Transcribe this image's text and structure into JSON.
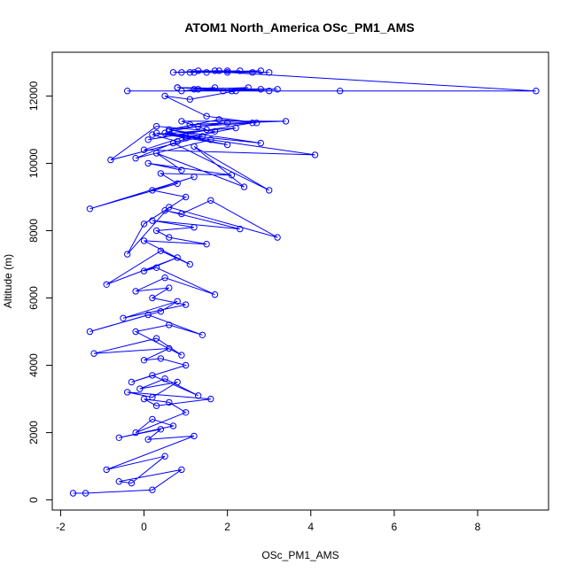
{
  "chart_data": {
    "type": "line",
    "title": "ATOM1 North_America OSc_PM1_AMS",
    "xlabel": "OSc_PM1_AMS",
    "ylabel": "Altitude (m)",
    "xlim": [
      -2.2,
      9.7
    ],
    "ylim": [
      -300,
      13300
    ],
    "x_ticks": [
      -2,
      0,
      2,
      4,
      6,
      8
    ],
    "y_ticks": [
      0,
      2000,
      4000,
      6000,
      8000,
      10000,
      12000
    ],
    "grid": false,
    "legend": "none",
    "line_color": "#0000ff",
    "marker": "open-circle",
    "series": [
      {
        "x": [
          -1.7,
          -1.4,
          0.2,
          0.9,
          -0.6,
          -0.3,
          0.5,
          -0.9,
          1.2,
          0.1,
          0.4,
          -0.6,
          0.7,
          0.2,
          -0.2,
          1.0,
          0.6,
          0.0,
          0.3,
          1.6,
          -0.4,
          0.2,
          0.8,
          -0.1,
          0.5,
          1.3,
          0.2,
          -0.3,
          1.0,
          0.4,
          0.0,
          0.6,
          -1.2,
          0.3,
          0.9,
          -0.2,
          0.6,
          1.4,
          0.1,
          -1.3,
          0.4,
          0.8,
          -0.5,
          1.0,
          0.2,
          0.6,
          -0.2,
          0.5,
          1.7,
          0.3,
          0.0,
          0.8,
          -0.9,
          0.4,
          1.1,
          0.0,
          1.5,
          0.6,
          0.3,
          1.2,
          0.2,
          2.3,
          0.5,
          0.9,
          1.6,
          3.2,
          0.6,
          -0.4,
          0.0,
          1.0,
          0.2,
          1.2,
          -1.3,
          0.8,
          0.4,
          2.1,
          0.1,
          0.9,
          0.3,
          2.4,
          1.2,
          3.0,
          0.7,
          -0.2,
          1.6,
          0.3,
          2.0,
          1.0,
          0.0,
          4.1,
          0.5,
          2.8,
          0.6,
          1.4,
          -0.8,
          0.3,
          1.7,
          0.8,
          0.2,
          2.2,
          1.0,
          0.6,
          1.3,
          2.6,
          0.1,
          1.5,
          0.9,
          3.4,
          1.1,
          2.0,
          0.6,
          1.8,
          2.7,
          1.5,
          0.5,
          1.1,
          2.2,
          0.8,
          3.2,
          0.9,
          1.7,
          1.2,
          2.1,
          0.8,
          2.8,
          1.9,
          2.5,
          1.3,
          3.0,
          -0.4,
          4.7,
          9.4,
          2.0,
          2.8,
          1.1,
          3.0,
          1.8,
          0.7,
          2.3,
          1.5,
          2.0,
          0.9,
          1.3,
          2.6,
          1.7,
          1.2
        ],
        "y": [
          200,
          200,
          300,
          900,
          550,
          500,
          1300,
          900,
          1900,
          1800,
          2100,
          1850,
          2200,
          2400,
          2000,
          2600,
          2900,
          3000,
          2800,
          3000,
          3200,
          3050,
          3500,
          3300,
          3600,
          3100,
          3700,
          3500,
          4000,
          4200,
          4150,
          4500,
          4350,
          4800,
          4300,
          5000,
          5200,
          4900,
          5500,
          5000,
          5600,
          5900,
          5400,
          5800,
          6000,
          6300,
          6200,
          6600,
          6100,
          6900,
          6800,
          7200,
          6400,
          7400,
          7000,
          7700,
          7600,
          7800,
          8000,
          8100,
          8300,
          8050,
          8600,
          8500,
          8900,
          7800,
          8700,
          7300,
          8200,
          9000,
          9200,
          9600,
          8650,
          9400,
          9700,
          9650,
          10000,
          9800,
          10300,
          9300,
          10500,
          9200,
          10600,
          10150,
          10700,
          10900,
          10550,
          10800,
          10400,
          10250,
          10900,
          10600,
          11000,
          10800,
          10100,
          11100,
          10950,
          10650,
          10850,
          11050,
          10750,
          10950,
          11100,
          11200,
          10700,
          11000,
          11250,
          11250,
          11150,
          11200,
          11000,
          11300,
          11200,
          11400,
          12000,
          11900,
          12150,
          12250,
          12200,
          12150,
          12250,
          12200,
          12150,
          12250,
          12200,
          12150,
          12250,
          12200,
          12150,
          12150,
          12150,
          12150,
          12700,
          12750,
          12700,
          12700,
          12750,
          12700,
          12750,
          12700,
          12750,
          12700,
          12750,
          12700,
          12750,
          12700
        ]
      }
    ]
  }
}
